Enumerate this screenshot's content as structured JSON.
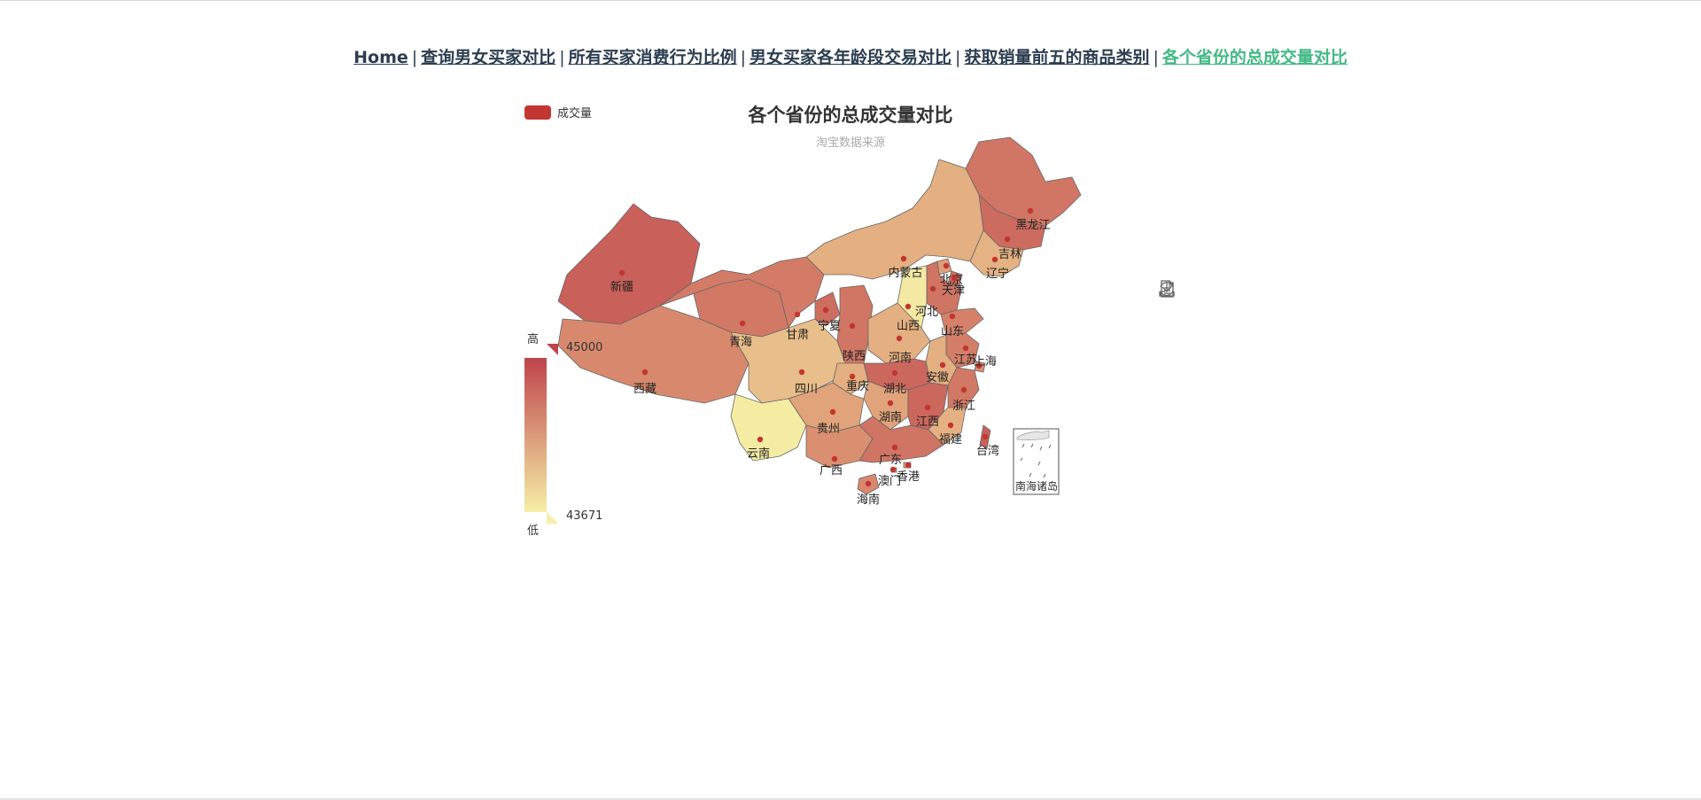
{
  "nav": {
    "links": [
      {
        "label": "Home",
        "active": false
      },
      {
        "label": "查询男女买家对比",
        "active": false
      },
      {
        "label": "所有买家消费行为比例",
        "active": false
      },
      {
        "label": "男女买家各年龄段交易对比",
        "active": false
      },
      {
        "label": "获取销量前五的商品类别",
        "active": false
      },
      {
        "label": "各个省份的总成交量对比",
        "active": true
      }
    ],
    "separator": "|"
  },
  "toolbox": {
    "icons": [
      "data-view-icon",
      "restore-icon",
      "save-as-image-icon"
    ]
  },
  "chart_data": {
    "type": "map",
    "title": "各个省份的总成交量对比",
    "subtitle": "淘宝数据来源",
    "legend": {
      "entries": [
        "成交量"
      ],
      "placement": "top-left"
    },
    "series": [
      {
        "name": "成交量"
      }
    ],
    "visual_map": {
      "min": 43671,
      "max": 45000,
      "high_label": "高",
      "low_label": "低",
      "color_low": "#f6efa6",
      "color_high": "#bf444c",
      "placement": "bottom-left"
    },
    "marker_color": "#c23531",
    "inset_label": "南海诸岛",
    "regions": [
      {
        "name": "黑龙江",
        "value": 44640
      },
      {
        "name": "吉林",
        "value": 44720
      },
      {
        "name": "辽宁",
        "value": 44180
      },
      {
        "name": "内蒙古",
        "value": 44210
      },
      {
        "name": "北京",
        "value": 44350
      },
      {
        "name": "天津",
        "value": 44700
      },
      {
        "name": "河北",
        "value": 44650
      },
      {
        "name": "山西",
        "value": 43720
      },
      {
        "name": "山东",
        "value": 44560
      },
      {
        "name": "新疆",
        "value": 44800
      },
      {
        "name": "青海",
        "value": 44620
      },
      {
        "name": "甘肃",
        "value": 44600
      },
      {
        "name": "宁夏",
        "value": 44700
      },
      {
        "name": "陕西",
        "value": 44640
      },
      {
        "name": "河南",
        "value": 44200
      },
      {
        "name": "江苏",
        "value": 44580
      },
      {
        "name": "上海",
        "value": 44460
      },
      {
        "name": "安徽",
        "value": 44200
      },
      {
        "name": "西藏",
        "value": 44500
      },
      {
        "name": "四川",
        "value": 44080
      },
      {
        "name": "重庆",
        "value": 44200
      },
      {
        "name": "湖北",
        "value": 44750
      },
      {
        "name": "湖南",
        "value": 44300
      },
      {
        "name": "江西",
        "value": 44750
      },
      {
        "name": "浙江",
        "value": 44620
      },
      {
        "name": "贵州",
        "value": 44300
      },
      {
        "name": "福建",
        "value": 44190
      },
      {
        "name": "云南",
        "value": 43700
      },
      {
        "name": "广西",
        "value": 44450
      },
      {
        "name": "广东",
        "value": 44650
      },
      {
        "name": "台湾",
        "value": 44800
      },
      {
        "name": "香港",
        "value": 44300
      },
      {
        "name": "澳门",
        "value": 44200
      },
      {
        "name": "海南",
        "value": 44500
      }
    ]
  }
}
